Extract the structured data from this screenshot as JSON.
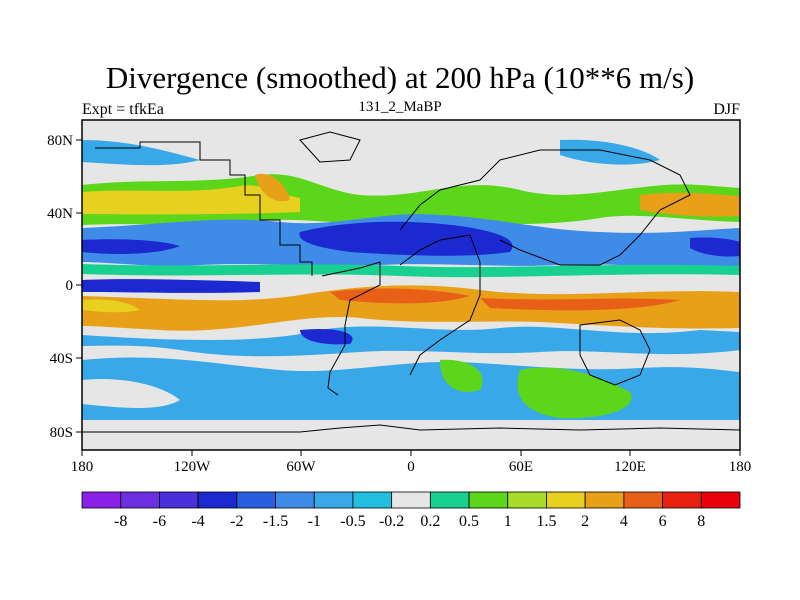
{
  "title": "Divergence (smoothed) at 200 hPa (10**6 m/s)",
  "subtitle_left": "Expt = tfkEa",
  "subtitle_center": "131_2_MaBP",
  "subtitle_right": "DJF",
  "x_ticks": [
    "180",
    "120W",
    "60W",
    "0",
    "60E",
    "120E",
    "180"
  ],
  "y_ticks": [
    "80N",
    "40N",
    "0",
    "40S",
    "80S"
  ],
  "colorbar": {
    "labels": [
      "-8",
      "-6",
      "-4",
      "-2",
      "-1.5",
      "-1",
      "-0.5",
      "-0.2",
      "0.2",
      "0.5",
      "1",
      "1.5",
      "2",
      "4",
      "6",
      "8"
    ],
    "colors": [
      "#8a20e8",
      "#6b2ee0",
      "#4a30d8",
      "#1c28d0",
      "#2a5ee0",
      "#3f8ce8",
      "#38a8e8",
      "#22c0e0",
      "#e6e6e6",
      "#18d090",
      "#5cd61a",
      "#a8dc28",
      "#e8d020",
      "#e8a018",
      "#e86018",
      "#e82010",
      "#e8000a"
    ]
  },
  "color_scale": {
    "neutral": "#e6e6e6",
    "negative_strong": "#1c28d0",
    "positive_strong": "#e86018"
  }
}
